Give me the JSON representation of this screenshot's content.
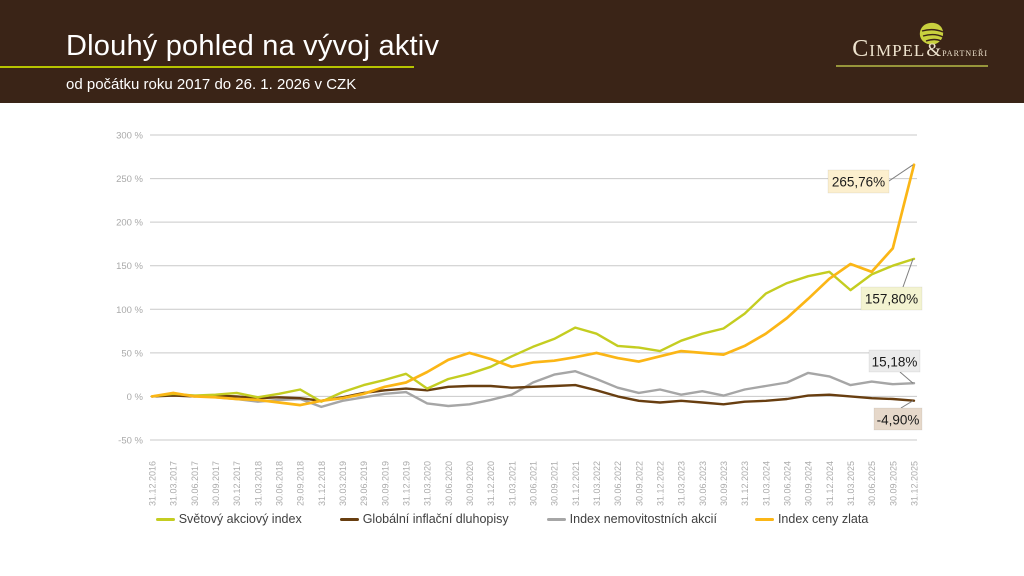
{
  "header": {
    "title": "Dlouhý pohled na vývoj aktiv",
    "subtitle": "od počátku roku 2017 do 26. 1. 2026 v CZK",
    "logo": {
      "name": "Cimpel",
      "ampersand": "&",
      "suffix": "partneři"
    },
    "colors": {
      "background": "#3A2417",
      "accent_underline": "#B6C400",
      "text": "#FFFFFF",
      "logo_text": "#EEE3CE",
      "leaf": "#C9D13E"
    }
  },
  "chart_data": {
    "type": "line",
    "title": "",
    "xlabel": "",
    "ylabel": "",
    "ylim": [
      -50,
      300
    ],
    "grid": "horizontal",
    "legend_position": "bottom",
    "y_tick_values": [
      300,
      250,
      200,
      150,
      100,
      50,
      0,
      -50
    ],
    "y_tick_labels": [
      "300 %",
      "250 %",
      "200 %",
      "150 %",
      "100 %",
      "50 %",
      "0 %",
      "-50 %"
    ],
    "categories": [
      "31.12.2016",
      "31.03.2017",
      "30.06.2017",
      "30.09.2017",
      "30.12.2017",
      "31.03.2018",
      "30.06.2018",
      "29.09.2018",
      "31.12.2018",
      "30.03.2019",
      "29.06.2019",
      "30.09.2019",
      "31.12.2019",
      "31.03.2020",
      "30.06.2020",
      "30.09.2020",
      "31.12.2020",
      "31.03.2021",
      "30.06.2021",
      "30.09.2021",
      "31.12.2021",
      "31.03.2022",
      "30.06.2022",
      "30.09.2022",
      "31.12.2022",
      "31.03.2023",
      "30.06.2023",
      "30.09.2023",
      "31.12.2023",
      "31.03.2024",
      "30.06.2024",
      "30.09.2024",
      "31.12.2024",
      "31.03.2025",
      "30.06.2025",
      "30.09.2025",
      "31.12.2025"
    ],
    "series": [
      {
        "name": "Světový akciový index",
        "color": "#C4CD21",
        "final_value": 157.8,
        "final_label": "157,80%",
        "label_bg": "#F3F3D0",
        "values": [
          0,
          3,
          1,
          2,
          4,
          -1,
          3,
          8,
          -6,
          5,
          13,
          19,
          26,
          9,
          20,
          26,
          34,
          46,
          57,
          66,
          79,
          72,
          58,
          56,
          52,
          64,
          72,
          78,
          95,
          118,
          130,
          138,
          143,
          122,
          140,
          150,
          157.8
        ]
      },
      {
        "name": "Globální inflační dluhopisy",
        "color": "#683E10",
        "final_value": -4.9,
        "final_label": "-4,90%",
        "label_bg": "#E6D8CA",
        "values": [
          0,
          1,
          0,
          1,
          0,
          -2,
          -1,
          -2,
          -5,
          -1,
          4,
          7,
          9,
          7,
          11,
          12,
          12,
          10,
          11,
          12,
          13,
          7,
          0,
          -5,
          -7,
          -5,
          -7,
          -9,
          -6,
          -5,
          -3,
          1,
          2,
          0,
          -2,
          -3,
          -4.9
        ]
      },
      {
        "name": "Index nemovitostních akcií",
        "color": "#A6A6A6",
        "final_value": 15.18,
        "final_label": "15,18%",
        "label_bg": "#EBEBEB",
        "values": [
          0,
          2,
          1,
          -1,
          -3,
          -6,
          -4,
          -3,
          -12,
          -5,
          -1,
          3,
          5,
          -8,
          -11,
          -9,
          -4,
          2,
          16,
          25,
          29,
          20,
          10,
          4,
          8,
          2,
          6,
          1,
          8,
          12,
          16,
          27,
          23,
          13,
          17,
          14,
          15.18
        ]
      },
      {
        "name": "Index ceny zlata",
        "color": "#FBB616",
        "final_value": 265.76,
        "final_label": "265,76%",
        "label_bg": "#FCEFCE",
        "values": [
          0,
          4,
          0,
          -1,
          -3,
          -4,
          -7,
          -10,
          -5,
          -2,
          3,
          11,
          16,
          28,
          42,
          50,
          43,
          34,
          39,
          41,
          45,
          50,
          44,
          40,
          46,
          52,
          50,
          48,
          58,
          72,
          90,
          112,
          135,
          152,
          143,
          170,
          265.76
        ]
      }
    ]
  }
}
